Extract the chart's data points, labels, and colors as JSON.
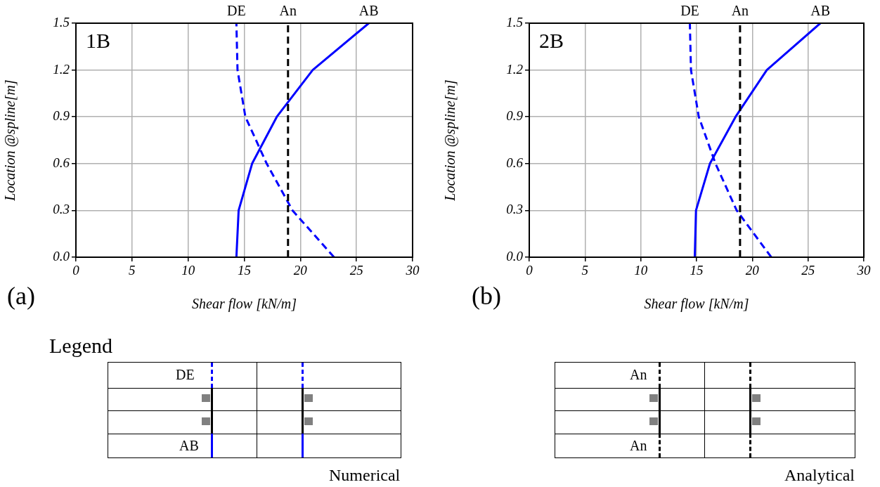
{
  "chart_data": [
    {
      "type": "line",
      "xlabel": "Shear flow [kN/m]",
      "ylabel": "Location @spline[m]",
      "annotations": [
        "1B",
        "(a)"
      ],
      "xlim": [
        0,
        30
      ],
      "xticks": [
        0,
        5,
        10,
        15,
        20,
        25,
        30
      ],
      "ylim": [
        0,
        1.5
      ],
      "yticks": [
        {
          "value": 0,
          "label": "0.0"
        },
        0.3,
        0.6,
        0.9,
        1.2,
        1.5
      ],
      "grid": true,
      "legend": false,
      "series": [
        {
          "name": "DE",
          "color": "#0000ff",
          "line_style": "dashed",
          "x": [
            23.0,
            19.3,
            17.0,
            15.1,
            14.4,
            14.3
          ],
          "values": [
            0,
            0.3,
            0.6,
            0.9,
            1.2,
            1.5
          ]
        },
        {
          "name": "AB",
          "color": "#0000ff",
          "line_style": "solid",
          "x": [
            14.3,
            14.5,
            15.7,
            17.9,
            21.1,
            26.1
          ],
          "values": [
            0,
            0.3,
            0.6,
            0.9,
            1.2,
            1.5
          ]
        }
      ],
      "ref_lines": [
        {
          "axis": "x",
          "value": 18.9,
          "label": "An",
          "color": "#000000",
          "line_style": "dashed"
        }
      ]
    },
    {
      "type": "line",
      "xlabel": "Shear flow [kN/m]",
      "ylabel": "Location @spline[m]",
      "annotations": [
        "2B",
        "(b)"
      ],
      "xlim": [
        0,
        30
      ],
      "xticks": [
        0,
        5,
        10,
        15,
        20,
        25,
        30
      ],
      "ylim": [
        0,
        1.5
      ],
      "yticks": [
        {
          "value": 0,
          "label": "0.0"
        },
        0.3,
        0.6,
        0.9,
        1.2,
        1.5
      ],
      "grid": true,
      "legend": false,
      "series": [
        {
          "name": "DE",
          "color": "#0000ff",
          "line_style": "dashed",
          "x": [
            21.7,
            18.6,
            16.7,
            15.2,
            14.5,
            14.4
          ],
          "values": [
            0,
            0.3,
            0.6,
            0.9,
            1.2,
            1.5
          ]
        },
        {
          "name": "AB",
          "color": "#0000ff",
          "line_style": "solid",
          "x": [
            14.84,
            14.95,
            16.2,
            18.5,
            21.3,
            26.1
          ],
          "values": [
            0,
            0.3,
            0.6,
            0.9,
            1.2,
            1.5
          ]
        }
      ],
      "ref_lines": [
        {
          "axis": "x",
          "value": 18.9,
          "label": "An",
          "color": "#000000",
          "line_style": "dashed"
        }
      ]
    },
    {
      "type": "other",
      "title": "Legend",
      "annotations": [
        "DE",
        "AB",
        "Numerical",
        "An",
        "An",
        "Analytical"
      ]
    }
  ]
}
